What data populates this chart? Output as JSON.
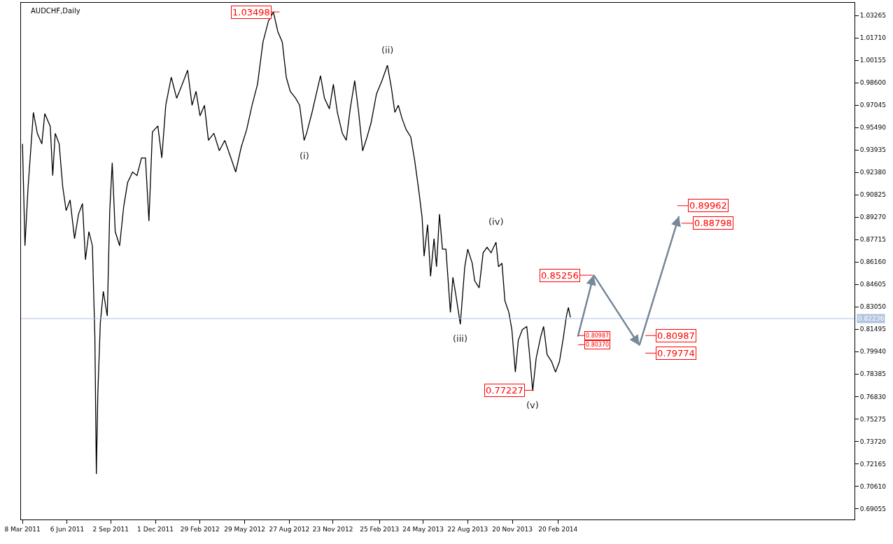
{
  "chart_data": {
    "type": "line",
    "title": "AUDCHF,Daily",
    "x": [
      "2011-03-08",
      "2011-03-13",
      "2011-03-19",
      "2011-03-30",
      "2011-04-07",
      "2011-04-16",
      "2011-04-22",
      "2011-05-03",
      "2011-05-08",
      "2011-05-13",
      "2011-05-21",
      "2011-05-28",
      "2011-06-04",
      "2011-06-12",
      "2011-06-21",
      "2011-06-29",
      "2011-07-07",
      "2011-07-13",
      "2011-07-20",
      "2011-07-27",
      "2011-08-01",
      "2011-08-04",
      "2011-08-07",
      "2011-08-12",
      "2011-08-18",
      "2011-08-26",
      "2011-08-31",
      "2011-09-05",
      "2011-09-11",
      "2011-09-20",
      "2011-09-28",
      "2011-10-06",
      "2011-10-16",
      "2011-10-25",
      "2011-11-03",
      "2011-11-11",
      "2011-11-18",
      "2011-11-25",
      "2011-12-06",
      "2011-12-14",
      "2011-12-22",
      "2012-01-02",
      "2012-01-13",
      "2012-01-27",
      "2012-02-04",
      "2012-02-13",
      "2012-02-21",
      "2012-02-29",
      "2012-03-09",
      "2012-03-17",
      "2012-03-28",
      "2012-04-08",
      "2012-04-19",
      "2012-05-03",
      "2012-05-11",
      "2012-05-22",
      "2012-06-02",
      "2012-06-13",
      "2012-06-24",
      "2012-07-05",
      "2012-07-16",
      "2012-07-26",
      "2012-08-04",
      "2012-08-13",
      "2012-08-21",
      "2012-08-29",
      "2012-09-09",
      "2012-09-17",
      "2012-09-26",
      "2012-10-01",
      "2012-10-12",
      "2012-10-29",
      "2012-11-06",
      "2012-11-16",
      "2012-11-24",
      "2012-12-02",
      "2012-12-12",
      "2012-12-20",
      "2012-12-28",
      "2013-01-06",
      "2013-01-14",
      "2013-01-22",
      "2013-01-31",
      "2013-02-08",
      "2013-02-19",
      "2013-03-02",
      "2013-03-13",
      "2013-03-21",
      "2013-03-28",
      "2013-04-04",
      "2013-04-12",
      "2013-04-20",
      "2013-04-29",
      "2013-05-07",
      "2013-05-15",
      "2013-05-22",
      "2013-05-26",
      "2013-06-02",
      "2013-06-08",
      "2013-06-15",
      "2013-06-20",
      "2013-06-26",
      "2013-07-02",
      "2013-07-09",
      "2013-07-18",
      "2013-07-23",
      "2013-07-29",
      "2013-08-07",
      "2013-08-16",
      "2013-08-22",
      "2013-08-31",
      "2013-09-05",
      "2013-09-14",
      "2013-09-22",
      "2013-09-30",
      "2013-10-08",
      "2013-10-18",
      "2013-10-23",
      "2013-10-30",
      "2013-11-05",
      "2013-11-13",
      "2013-11-19",
      "2013-11-26",
      "2013-12-02",
      "2013-12-10",
      "2013-12-19",
      "2013-12-24",
      "2013-12-31",
      "2014-01-07",
      "2014-01-16",
      "2014-01-22",
      "2014-01-29",
      "2014-02-07",
      "2014-02-15",
      "2014-02-23",
      "2014-03-03",
      "2014-03-09",
      "2014-03-13",
      "2014-03-17"
    ],
    "series": [
      {
        "color": "#000000",
        "values": [
          0.9435,
          0.8729,
          0.9119,
          0.9654,
          0.9508,
          0.9435,
          0.9645,
          0.9557,
          0.9216,
          0.9508,
          0.9435,
          0.9143,
          0.8973,
          0.9046,
          0.8778,
          0.8948,
          0.9021,
          0.8632,
          0.8827,
          0.8729,
          0.8096,
          0.7146,
          0.7706,
          0.8193,
          0.8413,
          0.8242,
          0.8973,
          0.9304,
          0.8827,
          0.8729,
          0.8997,
          0.9167,
          0.924,
          0.9216,
          0.9338,
          0.9338,
          0.89,
          0.9518,
          0.956,
          0.9338,
          0.9703,
          0.9898,
          0.9752,
          0.9874,
          0.9947,
          0.9703,
          0.98,
          0.963,
          0.9703,
          0.946,
          0.9509,
          0.9388,
          0.946,
          0.9321,
          0.924,
          0.9411,
          0.9533,
          0.9703,
          0.9849,
          1.0141,
          1.0287,
          1.035,
          1.0214,
          1.0141,
          0.9898,
          0.98,
          0.9752,
          0.9703,
          0.946,
          0.9509,
          0.9654,
          0.9908,
          0.9752,
          0.9679,
          0.9849,
          0.9654,
          0.9509,
          0.946,
          0.9679,
          0.9874,
          0.9654,
          0.9387,
          0.9484,
          0.9581,
          0.9783,
          0.9874,
          0.9981,
          0.9825,
          0.9654,
          0.9703,
          0.9606,
          0.9533,
          0.9484,
          0.9321,
          0.9119,
          0.8924,
          0.8656,
          0.8875,
          0.8517,
          0.8778,
          0.8583,
          0.8948,
          0.8705,
          0.8705,
          0.8266,
          0.851,
          0.8388,
          0.8184,
          0.8583,
          0.8705,
          0.8608,
          0.8486,
          0.8437,
          0.868,
          0.8719,
          0.868,
          0.8753,
          0.8583,
          0.8608,
          0.8346,
          0.8266,
          0.8146,
          0.7852,
          0.8074,
          0.8146,
          0.8169,
          0.7999,
          0.7723,
          0.795,
          0.8096,
          0.8169,
          0.7974,
          0.7926,
          0.7852,
          0.7926,
          0.8096,
          0.8242,
          0.8301,
          0.8232
        ]
      },
      {
        "color": "#778899",
        "x": [
          "2014-04-01",
          "2014-05-03",
          "2014-08-03",
          "2014-10-22"
        ],
        "values": [
          0.8099,
          0.8526,
          0.8038,
          0.8934
        ]
      }
    ],
    "xlim": [
      "2011-03-05",
      "2015-10-11"
    ],
    "xticks": [
      {
        "value": "2011-03-08",
        "label": "8 Mar 2011"
      },
      {
        "value": "2011-06-06",
        "label": "6 Jun 2011"
      },
      {
        "value": "2011-09-02",
        "label": "2 Sep 2011"
      },
      {
        "value": "2011-12-01",
        "label": "1 Dec 2011"
      },
      {
        "value": "2012-02-29",
        "label": "29 Feb 2012"
      },
      {
        "value": "2012-05-29",
        "label": "29 May 2012"
      },
      {
        "value": "2012-08-27",
        "label": "27 Aug 2012"
      },
      {
        "value": "2012-11-23",
        "label": "23 Nov 2012"
      },
      {
        "value": "2013-02-25",
        "label": "25 Feb 2013"
      },
      {
        "value": "2013-05-24",
        "label": "24 May 2013"
      },
      {
        "value": "2013-08-22",
        "label": "22 Aug 2013"
      },
      {
        "value": "2013-11-20",
        "label": "20 Nov 2013"
      },
      {
        "value": "2014-02-20",
        "label": "20 Feb 2014"
      }
    ],
    "ylim": [
      0.683,
      1.0414
    ],
    "yticks": [
      0.69055,
      {
        "value": 0.7061,
        "label": "0.70610"
      },
      0.72165,
      {
        "value": 0.7372,
        "label": "0.73720"
      },
      0.75275,
      {
        "value": 0.7683,
        "label": "0.76830"
      },
      0.78385,
      {
        "value": 0.7994,
        "label": "0.79940"
      },
      0.81495,
      {
        "value": 0.8305,
        "label": "0.83050"
      },
      0.84605,
      {
        "value": 0.8616,
        "label": "0.86160"
      },
      0.87715,
      {
        "value": 0.8927,
        "label": "0.89270"
      },
      0.90825,
      {
        "value": 0.9238,
        "label": "0.92380"
      },
      0.93935,
      {
        "value": 0.9549,
        "label": "0.95490"
      },
      0.97045,
      {
        "value": 0.986,
        "label": "0.98600"
      },
      1.00155,
      {
        "value": 1.0171,
        "label": "1.01710"
      },
      1.03265
    ],
    "ref_lines": [
      {
        "axis": "y",
        "value": 0.82236,
        "label": "0.82236",
        "color": "#b0c4de"
      }
    ],
    "annotations": [
      "1.03498",
      "0.77227",
      "0.85256",
      "0.80987",
      "0.80370",
      "0.80987",
      "0.79774",
      "0.89962",
      "0.88798",
      {
        "text": "(ii)",
        "x": "2013-03-13",
        "y": 0.9981
      },
      {
        "text": "(i)",
        "x": "2012-09-26",
        "y": 0.946
      },
      {
        "text": "(iii)",
        "x": "2013-08-07",
        "y": 0.8184
      },
      {
        "text": "(iv)",
        "x": "2013-10-18",
        "y": 0.8753
      },
      {
        "text": "(v)",
        "x": "2013-12-31",
        "y": 0.7723
      }
    ],
    "marker": "none",
    "line_style": "solid"
  }
}
